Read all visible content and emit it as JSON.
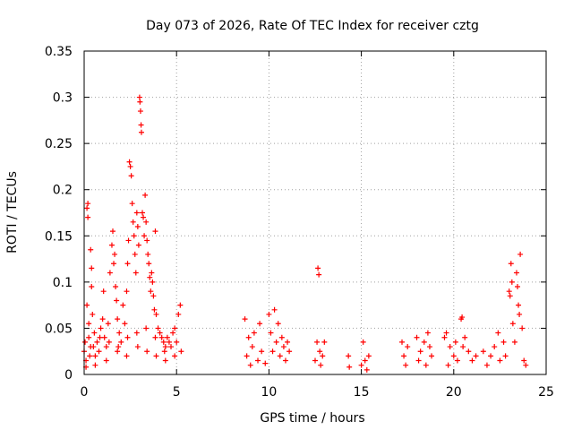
{
  "chart_data": {
    "type": "scatter",
    "title": "Day 073 of 2026, Rate Of TEC Index for receiver cztg",
    "xlabel": "GPS time / hours",
    "ylabel": "ROTI / TECUs",
    "xlim": [
      0,
      25
    ],
    "ylim": [
      0,
      0.35
    ],
    "x_ticks": [
      "0",
      "5",
      "10",
      "15",
      "20",
      "25"
    ],
    "x_tick_values": [
      0,
      5,
      10,
      15,
      20,
      25
    ],
    "y_ticks": [
      "0",
      "0.05",
      "0.1",
      "0.15",
      "0.2",
      "0.25",
      "0.3",
      "0.35"
    ],
    "y_tick_values": [
      0,
      0.05,
      0.1,
      0.15,
      0.2,
      0.25,
      0.3,
      0.35
    ],
    "grid": true,
    "marker": "+",
    "series": [
      {
        "name": "ROTI",
        "color": "#ff0000",
        "points": [
          [
            0.0,
            0.025
          ],
          [
            0.05,
            0.035
          ],
          [
            0.1,
            0.015
          ],
          [
            0.15,
            0.075
          ],
          [
            0.15,
            0.18
          ],
          [
            0.2,
            0.185
          ],
          [
            0.2,
            0.17
          ],
          [
            0.25,
            0.04
          ],
          [
            0.25,
            0.055
          ],
          [
            0.3,
            0.02
          ],
          [
            0.35,
            0.135
          ],
          [
            0.4,
            0.115
          ],
          [
            0.4,
            0.095
          ],
          [
            0.45,
            0.065
          ],
          [
            0.5,
            0.03
          ],
          [
            0.55,
            0.045
          ],
          [
            0.6,
            0.01
          ],
          [
            0.7,
            0.035
          ],
          [
            0.8,
            0.025
          ],
          [
            0.9,
            0.05
          ],
          [
            1.0,
            0.06
          ],
          [
            1.05,
            0.09
          ],
          [
            1.1,
            0.04
          ],
          [
            1.2,
            0.03
          ],
          [
            1.3,
            0.055
          ],
          [
            1.4,
            0.11
          ],
          [
            1.5,
            0.14
          ],
          [
            1.55,
            0.155
          ],
          [
            1.6,
            0.12
          ],
          [
            1.65,
            0.13
          ],
          [
            1.7,
            0.095
          ],
          [
            1.75,
            0.08
          ],
          [
            1.8,
            0.06
          ],
          [
            1.9,
            0.045
          ],
          [
            2.0,
            0.035
          ],
          [
            2.1,
            0.075
          ],
          [
            2.2,
            0.055
          ],
          [
            2.3,
            0.09
          ],
          [
            2.35,
            0.12
          ],
          [
            2.4,
            0.145
          ],
          [
            2.45,
            0.23
          ],
          [
            2.5,
            0.225
          ],
          [
            2.55,
            0.215
          ],
          [
            2.6,
            0.185
          ],
          [
            2.65,
            0.165
          ],
          [
            2.7,
            0.15
          ],
          [
            2.75,
            0.13
          ],
          [
            2.8,
            0.11
          ],
          [
            2.85,
            0.175
          ],
          [
            2.9,
            0.16
          ],
          [
            2.95,
            0.14
          ],
          [
            3.0,
            0.3
          ],
          [
            3.02,
            0.295
          ],
          [
            3.05,
            0.285
          ],
          [
            3.08,
            0.27
          ],
          [
            3.1,
            0.262
          ],
          [
            3.15,
            0.175
          ],
          [
            3.2,
            0.17
          ],
          [
            3.25,
            0.15
          ],
          [
            3.3,
            0.194
          ],
          [
            3.35,
            0.165
          ],
          [
            3.4,
            0.145
          ],
          [
            3.45,
            0.13
          ],
          [
            3.5,
            0.12
          ],
          [
            3.55,
            0.105
          ],
          [
            3.6,
            0.09
          ],
          [
            3.65,
            0.11
          ],
          [
            3.7,
            0.1
          ],
          [
            3.75,
            0.085
          ],
          [
            3.8,
            0.07
          ],
          [
            3.85,
            0.155
          ],
          [
            3.9,
            0.065
          ],
          [
            4.0,
            0.05
          ],
          [
            4.1,
            0.045
          ],
          [
            4.2,
            0.04
          ],
          [
            4.3,
            0.035
          ],
          [
            4.4,
            0.03
          ],
          [
            4.5,
            0.04
          ],
          [
            4.6,
            0.035
          ],
          [
            4.7,
            0.03
          ],
          [
            4.8,
            0.045
          ],
          [
            4.9,
            0.05
          ],
          [
            5.0,
            0.035
          ],
          [
            5.1,
            0.065
          ],
          [
            5.2,
            0.075
          ],
          [
            5.25,
            0.025
          ],
          [
            0.1,
            0.008
          ],
          [
            0.6,
            0.02
          ],
          [
            1.2,
            0.015
          ],
          [
            1.8,
            0.025
          ],
          [
            2.3,
            0.02
          ],
          [
            2.9,
            0.03
          ],
          [
            3.4,
            0.025
          ],
          [
            3.9,
            0.02
          ],
          [
            4.4,
            0.015
          ],
          [
            4.9,
            0.02
          ],
          [
            0.35,
            0.03
          ],
          [
            0.85,
            0.04
          ],
          [
            1.35,
            0.035
          ],
          [
            1.85,
            0.03
          ],
          [
            2.35,
            0.04
          ],
          [
            2.85,
            0.045
          ],
          [
            3.35,
            0.05
          ],
          [
            3.85,
            0.04
          ],
          [
            4.35,
            0.025
          ],
          [
            8.7,
            0.06
          ],
          [
            8.8,
            0.02
          ],
          [
            8.9,
            0.04
          ],
          [
            9.0,
            0.01
          ],
          [
            9.1,
            0.03
          ],
          [
            9.2,
            0.045
          ],
          [
            9.4,
            0.015
          ],
          [
            9.5,
            0.055
          ],
          [
            9.6,
            0.025
          ],
          [
            9.8,
            0.012
          ],
          [
            10.0,
            0.065
          ],
          [
            10.1,
            0.045
          ],
          [
            10.2,
            0.025
          ],
          [
            10.3,
            0.07
          ],
          [
            10.4,
            0.035
          ],
          [
            10.5,
            0.055
          ],
          [
            10.6,
            0.02
          ],
          [
            10.7,
            0.04
          ],
          [
            10.8,
            0.03
          ],
          [
            10.9,
            0.015
          ],
          [
            11.0,
            0.035
          ],
          [
            11.1,
            0.025
          ],
          [
            12.5,
            0.015
          ],
          [
            12.6,
            0.035
          ],
          [
            12.65,
            0.115
          ],
          [
            12.7,
            0.108
          ],
          [
            12.75,
            0.025
          ],
          [
            12.8,
            0.01
          ],
          [
            12.9,
            0.02
          ],
          [
            13.0,
            0.035
          ],
          [
            14.3,
            0.02
          ],
          [
            14.35,
            0.008
          ],
          [
            15.1,
            0.035
          ],
          [
            15.0,
            0.01
          ],
          [
            15.2,
            0.015
          ],
          [
            15.3,
            0.005
          ],
          [
            15.4,
            0.02
          ],
          [
            17.2,
            0.035
          ],
          [
            17.3,
            0.02
          ],
          [
            17.4,
            0.01
          ],
          [
            17.5,
            0.03
          ],
          [
            18.0,
            0.04
          ],
          [
            18.1,
            0.015
          ],
          [
            18.2,
            0.025
          ],
          [
            18.4,
            0.035
          ],
          [
            18.5,
            0.01
          ],
          [
            18.6,
            0.045
          ],
          [
            18.7,
            0.03
          ],
          [
            18.8,
            0.02
          ],
          [
            19.5,
            0.04
          ],
          [
            19.6,
            0.045
          ],
          [
            19.7,
            0.01
          ],
          [
            19.8,
            0.03
          ],
          [
            20.0,
            0.02
          ],
          [
            20.1,
            0.035
          ],
          [
            20.2,
            0.015
          ],
          [
            20.4,
            0.06
          ],
          [
            20.45,
            0.062
          ],
          [
            20.5,
            0.03
          ],
          [
            20.6,
            0.04
          ],
          [
            20.8,
            0.025
          ],
          [
            21.0,
            0.015
          ],
          [
            21.2,
            0.02
          ],
          [
            21.6,
            0.025
          ],
          [
            21.8,
            0.01
          ],
          [
            22.0,
            0.02
          ],
          [
            22.2,
            0.03
          ],
          [
            22.4,
            0.045
          ],
          [
            22.5,
            0.015
          ],
          [
            22.7,
            0.035
          ],
          [
            22.8,
            0.02
          ],
          [
            23.0,
            0.09
          ],
          [
            23.05,
            0.085
          ],
          [
            23.1,
            0.12
          ],
          [
            23.15,
            0.1
          ],
          [
            23.2,
            0.055
          ],
          [
            23.3,
            0.035
          ],
          [
            23.4,
            0.11
          ],
          [
            23.45,
            0.095
          ],
          [
            23.5,
            0.075
          ],
          [
            23.55,
            0.065
          ],
          [
            23.6,
            0.13
          ],
          [
            23.7,
            0.05
          ],
          [
            23.8,
            0.015
          ],
          [
            23.9,
            0.01
          ]
        ]
      }
    ]
  }
}
